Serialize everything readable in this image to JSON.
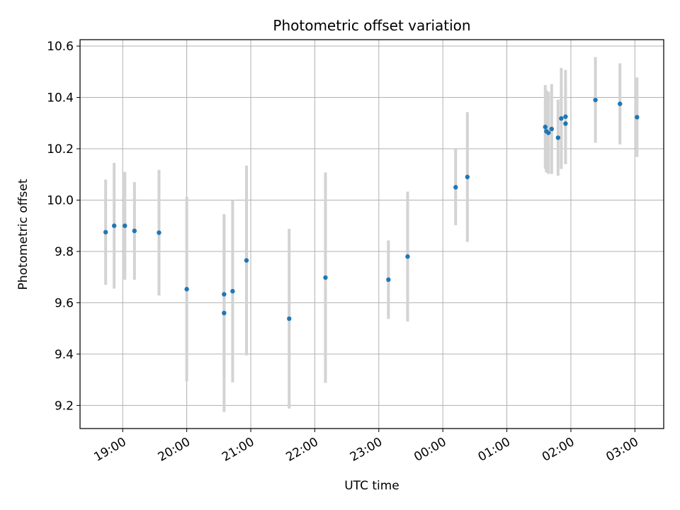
{
  "chart_data": {
    "type": "scatter",
    "title": "Photometric offset variation",
    "xlabel": "UTC time",
    "ylabel": "Photometric offset",
    "x_is_time": true,
    "x_tick_labels": [
      "19:00",
      "20:00",
      "21:00",
      "22:00",
      "23:00",
      "00:00",
      "01:00",
      "02:00",
      "03:00"
    ],
    "y_ticks": [
      9.2,
      9.4,
      9.6,
      9.8,
      10.0,
      10.2,
      10.4,
      10.6
    ],
    "y_tick_labels": [
      "9.2",
      "9.4",
      "9.6",
      "9.8",
      "10.0",
      "10.2",
      "10.4",
      "10.6"
    ],
    "ylim": [
      9.11,
      10.625
    ],
    "xlim": [
      "18:20",
      "03:27"
    ],
    "grid": true,
    "marker_color": "#1f77b4",
    "errorbar_color": "#d3d3d3",
    "points": [
      {
        "t": "18:44",
        "y": 9.875,
        "err": 0.205
      },
      {
        "t": "18:52",
        "y": 9.9,
        "err": 0.245
      },
      {
        "t": "19:02",
        "y": 9.9,
        "err": 0.21
      },
      {
        "t": "19:11",
        "y": 9.88,
        "err": 0.19
      },
      {
        "t": "19:34",
        "y": 9.873,
        "err": 0.245
      },
      {
        "t": "20:00",
        "y": 9.653,
        "err": 0.36
      },
      {
        "t": "20:35",
        "y": 9.633,
        "err": 0.31
      },
      {
        "t": "20:35",
        "y": 9.56,
        "err": 0.385
      },
      {
        "t": "20:43",
        "y": 9.645,
        "err": 0.355
      },
      {
        "t": "20:56",
        "y": 9.765,
        "err": 0.37
      },
      {
        "t": "21:36",
        "y": 9.538,
        "err": 0.35
      },
      {
        "t": "22:10",
        "y": 9.698,
        "err": 0.41
      },
      {
        "t": "23:09",
        "y": 9.69,
        "err": 0.153
      },
      {
        "t": "23:27",
        "y": 9.78,
        "err": 0.253
      },
      {
        "t": "00:12",
        "y": 10.05,
        "err": 0.148
      },
      {
        "t": "00:23",
        "y": 10.09,
        "err": 0.253
      },
      {
        "t": "01:36",
        "y": 10.285,
        "err": 0.163
      },
      {
        "t": "01:37",
        "y": 10.268,
        "err": 0.16
      },
      {
        "t": "01:39",
        "y": 10.262,
        "err": 0.16
      },
      {
        "t": "01:42",
        "y": 10.277,
        "err": 0.175
      },
      {
        "t": "01:48",
        "y": 10.243,
        "err": 0.148
      },
      {
        "t": "01:51",
        "y": 10.318,
        "err": 0.197
      },
      {
        "t": "01:55",
        "y": 10.325,
        "err": 0.182
      },
      {
        "t": "01:55",
        "y": 10.298,
        "err": 0.158
      },
      {
        "t": "02:23",
        "y": 10.39,
        "err": 0.167
      },
      {
        "t": "02:46",
        "y": 10.375,
        "err": 0.158
      },
      {
        "t": "03:02",
        "y": 10.323,
        "err": 0.155
      }
    ]
  }
}
